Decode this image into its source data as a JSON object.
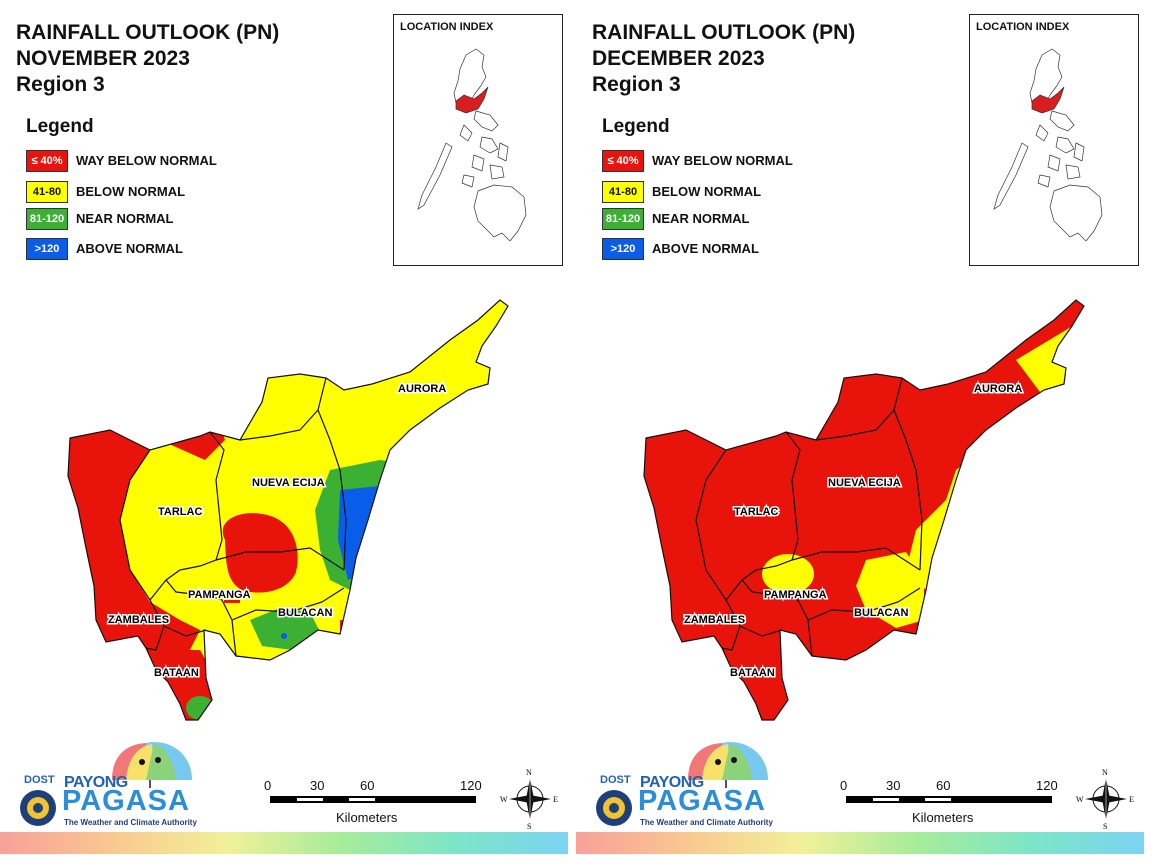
{
  "panels": [
    {
      "title_line1": "RAINFALL OUTLOOK (PN)",
      "title_line2": "NOVEMBER 2023",
      "title_line3": "Region 3",
      "legend_title": "Legend",
      "legend": [
        {
          "range": "≤ 40%",
          "label": "WAY BELOW NORMAL",
          "color": "#e8140c"
        },
        {
          "range": "41-80",
          "label": "BELOW NORMAL",
          "color": "#ffff00"
        },
        {
          "range": "81-120",
          "label": "NEAR NORMAL",
          "color": "#3cb032"
        },
        {
          "range": ">120",
          "label": "ABOVE NORMAL",
          "color": "#0a5de8"
        }
      ],
      "inset_title": "LOCATION INDEX",
      "provinces": {
        "aurora": "AURORA",
        "nueva_ecija": "NUEVA ECIJA",
        "tarlac": "TARLAC",
        "pampanga": "PAMPANGA",
        "bulacan": "BULACAN",
        "zambales": "ZAMBALES",
        "bataan": "BATAAN"
      },
      "logo": {
        "dost": "DOST",
        "payong": "PAYONG",
        "pagasa": "PAGASA",
        "tagline": "The Weather and Climate Authority"
      },
      "scale": {
        "ticks": [
          "0",
          "30",
          "60",
          "120"
        ],
        "unit": "Kilometers"
      },
      "compass": {
        "n": "N",
        "s": "S",
        "e": "E",
        "w": "W"
      }
    },
    {
      "title_line1": "RAINFALL OUTLOOK (PN)",
      "title_line2": "DECEMBER 2023",
      "title_line3": "Region 3",
      "legend_title": "Legend",
      "legend": [
        {
          "range": "≤ 40%",
          "label": "WAY BELOW NORMAL",
          "color": "#e8140c"
        },
        {
          "range": "41-80",
          "label": "BELOW NORMAL",
          "color": "#ffff00"
        },
        {
          "range": "81-120",
          "label": "NEAR NORMAL",
          "color": "#3cb032"
        },
        {
          "range": ">120",
          "label": "ABOVE NORMAL",
          "color": "#0a5de8"
        }
      ],
      "inset_title": "LOCATION INDEX",
      "provinces": {
        "aurora": "AURORA",
        "nueva_ecija": "NUEVA ECIJA",
        "tarlac": "TARLAC",
        "pampanga": "PAMPANGA",
        "bulacan": "BULACAN",
        "zambales": "ZAMBALES",
        "bataan": "BATAAN"
      },
      "logo": {
        "dost": "DOST",
        "payong": "PAYONG",
        "pagasa": "PAGASA",
        "tagline": "The Weather and Climate Authority"
      },
      "scale": {
        "ticks": [
          "0",
          "30",
          "60",
          "120"
        ],
        "unit": "Kilometers"
      },
      "compass": {
        "n": "N",
        "s": "S",
        "e": "E",
        "w": "W"
      }
    }
  ]
}
